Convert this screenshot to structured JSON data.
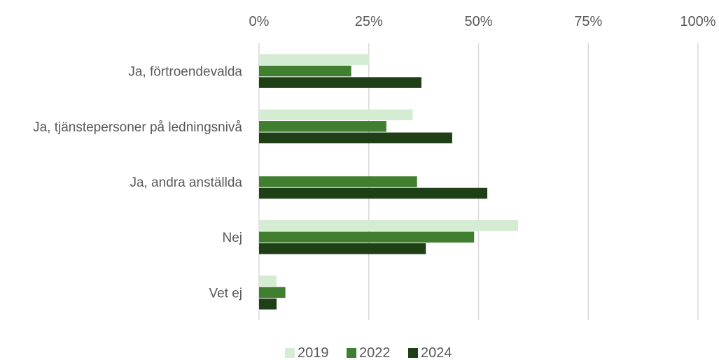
{
  "chart_data": {
    "type": "bar",
    "orientation": "horizontal",
    "title": "",
    "xlabel": "",
    "ylabel": "",
    "xlim": [
      0,
      100
    ],
    "x_ticks": [
      "0%",
      "25%",
      "50%",
      "75%",
      "100%"
    ],
    "x_axis_position": "top",
    "grid": true,
    "legend_position": "bottom",
    "categories": [
      "Ja, förtroendevalda",
      "Ja,  tjänstepersoner på ledningsnivå",
      "Ja,  andra anställda",
      "Nej",
      "Vet ej"
    ],
    "series": [
      {
        "name": "2019",
        "color": "#d4ecd2",
        "values": [
          25,
          35,
          null,
          59,
          4
        ]
      },
      {
        "name": "2022",
        "color": "#3f7f2f",
        "values": [
          21,
          29,
          36,
          49,
          6
        ]
      },
      {
        "name": "2024",
        "color": "#1f3f17",
        "values": [
          37,
          44,
          52,
          38,
          4
        ]
      }
    ]
  }
}
